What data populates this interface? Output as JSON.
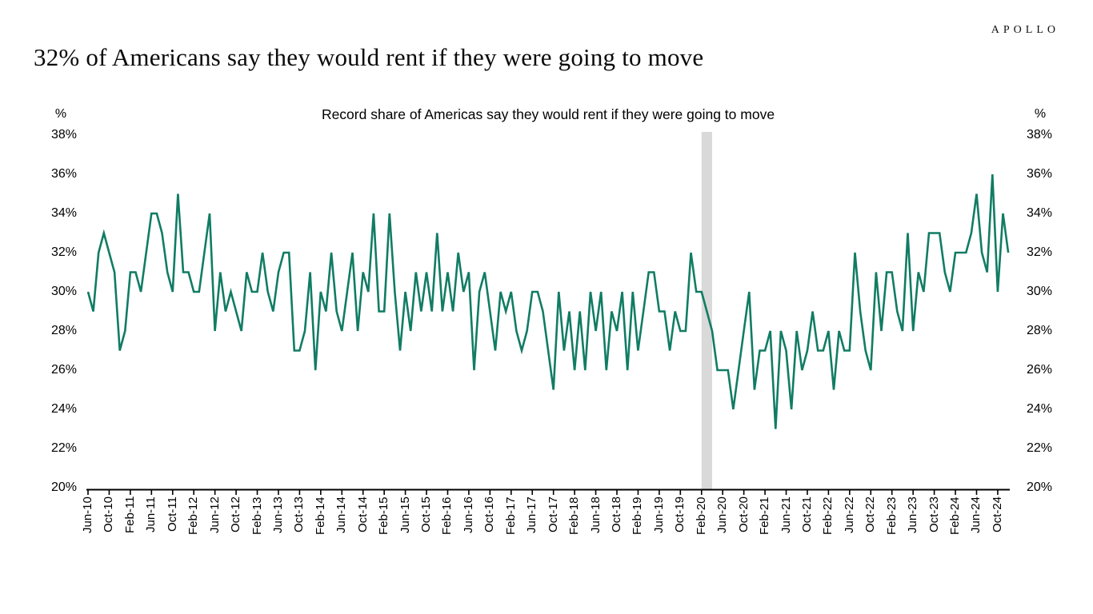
{
  "header": {
    "logo": "APOLLO",
    "title": "32% of Americans say they would rent if they were going to move"
  },
  "chart": {
    "title": "Record share of Americas say they would rent if they were going to move",
    "unit_left": "%",
    "unit_right": "%"
  },
  "chart_data": {
    "type": "line",
    "title": "Record share of Americas say they would rent if they were going to move",
    "series_name": "Share of Americans who would rent if they were going to move (%)",
    "frequency": "monthly",
    "start_month": "Jun-2010",
    "end_month": "Dec-2024",
    "values": [
      30,
      29,
      32,
      33,
      32,
      31,
      27,
      28,
      31,
      31,
      30,
      32,
      34,
      34,
      33,
      31,
      30,
      35,
      31,
      31,
      30,
      30,
      32,
      34,
      28,
      31,
      29,
      30,
      29,
      28,
      31,
      30,
      30,
      32,
      30,
      29,
      31,
      32,
      32,
      27,
      27,
      28,
      31,
      26,
      30,
      29,
      32,
      29,
      28,
      30,
      32,
      28,
      31,
      30,
      34,
      29,
      29,
      34,
      30,
      27,
      30,
      28,
      31,
      29,
      31,
      29,
      33,
      29,
      31,
      29,
      32,
      30,
      31,
      26,
      30,
      31,
      29,
      27,
      30,
      29,
      30,
      28,
      27,
      28,
      30,
      30,
      29,
      27,
      25,
      30,
      27,
      29,
      26,
      29,
      26,
      30,
      28,
      30,
      26,
      29,
      28,
      30,
      26,
      30,
      27,
      29,
      31,
      31,
      29,
      29,
      27,
      29,
      28,
      28,
      32,
      30,
      30,
      29,
      28,
      26,
      26,
      26,
      24,
      26,
      28,
      30,
      25,
      27,
      27,
      28,
      23,
      28,
      27,
      24,
      28,
      26,
      27,
      29,
      27,
      27,
      28,
      25,
      28,
      27,
      27,
      32,
      29,
      27,
      26,
      31,
      28,
      31,
      31,
      29,
      28,
      33,
      28,
      31,
      30,
      33,
      33,
      33,
      31,
      30,
      32,
      32,
      32,
      33,
      35,
      32,
      31,
      36,
      30,
      34,
      32
    ],
    "x_tick_step_months": 4,
    "x_tick_labels": [
      "Jun-10",
      "Oct-10",
      "Feb-11",
      "Jun-11",
      "Oct-11",
      "Feb-12",
      "Jun-12",
      "Oct-12",
      "Feb-13",
      "Jun-13",
      "Oct-13",
      "Feb-14",
      "Jun-14",
      "Oct-14",
      "Feb-15",
      "Jun-15",
      "Oct-15",
      "Feb-16",
      "Jun-16",
      "Oct-16",
      "Feb-17",
      "Jun-17",
      "Oct-17",
      "Feb-18",
      "Jun-18",
      "Oct-18",
      "Feb-19",
      "Jun-19",
      "Oct-19",
      "Feb-20",
      "Jun-20",
      "Oct-20",
      "Feb-21",
      "Jun-21",
      "Oct-21",
      "Feb-22",
      "Jun-22",
      "Oct-22",
      "Feb-23",
      "Jun-23",
      "Oct-23",
      "Feb-24",
      "Jun-24",
      "Oct-24"
    ],
    "y_tick_labels": [
      "38%",
      "36%",
      "34%",
      "32%",
      "30%",
      "28%",
      "26%",
      "24%",
      "22%",
      "20%"
    ],
    "ylim": [
      20,
      38
    ],
    "y_axis_unit": "%",
    "grid": "off",
    "legend": "none",
    "line_color": "#117c64",
    "axis_color": "#000000",
    "recession_band": {
      "from_month": "Feb-2020",
      "to_month": "Apr-2020",
      "start_index": 116,
      "end_index": 118,
      "color": "#d9d9d9"
    },
    "latest_value": 32,
    "max_value": 36,
    "min_value": 23
  }
}
